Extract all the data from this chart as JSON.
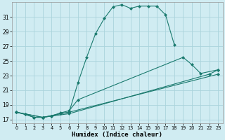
{
  "xlabel": "Humidex (Indice chaleur)",
  "bg_color": "#d0ecf2",
  "grid_color": "#aad4dc",
  "line_color": "#1a7a6e",
  "xlim": [
    -0.5,
    23.5
  ],
  "ylim": [
    16.5,
    33.0
  ],
  "yticks": [
    17,
    19,
    21,
    23,
    25,
    27,
    29,
    31
  ],
  "xticks": [
    0,
    1,
    2,
    3,
    4,
    5,
    6,
    7,
    8,
    9,
    10,
    11,
    12,
    13,
    14,
    15,
    16,
    17,
    18,
    19,
    20,
    21,
    22,
    23
  ],
  "curve_main": {
    "x": [
      0,
      1,
      2,
      3,
      4,
      5,
      6,
      7,
      8,
      9,
      10,
      11,
      12,
      13,
      14,
      15,
      16,
      17,
      18
    ],
    "y": [
      18.0,
      17.7,
      17.3,
      17.3,
      17.5,
      17.8,
      18.0,
      22.0,
      25.5,
      28.7,
      30.8,
      32.4,
      32.7,
      32.2,
      32.5,
      32.5,
      32.5,
      31.3,
      27.2
    ]
  },
  "curve_line1": {
    "x": [
      0,
      1,
      2,
      3,
      4,
      5,
      6,
      7,
      19,
      20,
      21,
      23
    ],
    "y": [
      18.0,
      17.7,
      17.3,
      17.3,
      17.5,
      17.9,
      18.2,
      19.7,
      25.5,
      24.5,
      23.3,
      23.8
    ]
  },
  "curve_line2": {
    "x": [
      0,
      3,
      5,
      6,
      23
    ],
    "y": [
      18.0,
      17.3,
      17.8,
      18.0,
      23.2
    ]
  },
  "curve_line3": {
    "x": [
      0,
      3,
      6,
      22,
      23
    ],
    "y": [
      18.0,
      17.3,
      17.8,
      23.2,
      23.8
    ]
  }
}
